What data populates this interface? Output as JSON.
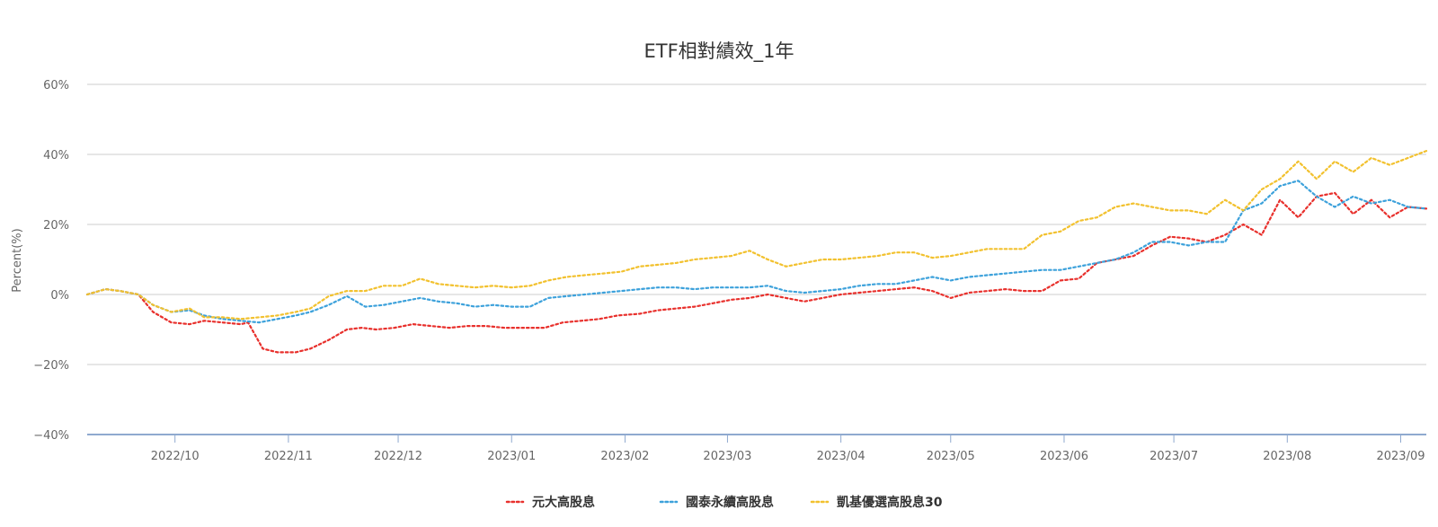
{
  "chart_data": {
    "type": "line",
    "title": "ETF相對績效_1年",
    "ylabel": "Percent(%)",
    "xlabel": "",
    "ylim": [
      -40,
      60
    ],
    "yticks": [
      60,
      40,
      20,
      0,
      -20,
      -40
    ],
    "ytick_labels": [
      "60%",
      "40%",
      "20%",
      "0%",
      "−20%",
      "−40%"
    ],
    "xlim": [
      "2022-09-07",
      "2023-09-08"
    ],
    "xticks": [
      "2022-10-01",
      "2022-11-01",
      "2022-12-01",
      "2023-01-01",
      "2023-02-01",
      "2023-03-01",
      "2023-04-01",
      "2023-05-01",
      "2023-06-01",
      "2023-07-01",
      "2023-08-01",
      "2023-09-01"
    ],
    "xtick_labels": [
      "2022/10",
      "2022/11",
      "2022/12",
      "2023/01",
      "2023/02",
      "2023/03",
      "2023/04",
      "2023/05",
      "2023/06",
      "2023/07",
      "2023/08",
      "2023/09"
    ],
    "grid": true,
    "legend_position": "bottom",
    "series": [
      {
        "name": "元大高股息",
        "color": "#e8302c",
        "x": [
          "2022-09-07",
          "2022-09-12",
          "2022-09-16",
          "2022-09-21",
          "2022-09-25",
          "2022-09-30",
          "2022-10-05",
          "2022-10-09",
          "2022-10-14",
          "2022-10-19",
          "2022-10-21",
          "2022-10-25",
          "2022-10-29",
          "2022-11-03",
          "2022-11-07",
          "2022-11-12",
          "2022-11-17",
          "2022-11-21",
          "2022-11-25",
          "2022-11-30",
          "2022-12-05",
          "2022-12-10",
          "2022-12-15",
          "2022-12-20",
          "2022-12-25",
          "2022-12-30",
          "2023-01-05",
          "2023-01-10",
          "2023-01-15",
          "2023-01-20",
          "2023-01-25",
          "2023-01-30",
          "2023-02-05",
          "2023-02-10",
          "2023-02-15",
          "2023-02-20",
          "2023-02-25",
          "2023-03-02",
          "2023-03-07",
          "2023-03-12",
          "2023-03-17",
          "2023-03-22",
          "2023-03-27",
          "2023-04-01",
          "2023-04-06",
          "2023-04-11",
          "2023-04-16",
          "2023-04-21",
          "2023-04-26",
          "2023-05-01",
          "2023-05-06",
          "2023-05-11",
          "2023-05-16",
          "2023-05-21",
          "2023-05-26",
          "2023-05-31",
          "2023-06-05",
          "2023-06-10",
          "2023-06-15",
          "2023-06-20",
          "2023-06-25",
          "2023-06-30",
          "2023-07-05",
          "2023-07-10",
          "2023-07-15",
          "2023-07-20",
          "2023-07-25",
          "2023-07-30",
          "2023-08-04",
          "2023-08-09",
          "2023-08-14",
          "2023-08-19",
          "2023-08-24",
          "2023-08-29",
          "2023-09-03",
          "2023-09-08"
        ],
        "y": [
          0,
          1.5,
          1,
          0,
          -5,
          -8,
          -8.5,
          -7.5,
          -8,
          -8.5,
          -8,
          -15.5,
          -16.5,
          -16.5,
          -15.5,
          -13,
          -10,
          -9.5,
          -10,
          -9.5,
          -8.5,
          -9,
          -9.5,
          -9,
          -9,
          -9.5,
          -9.5,
          -9.5,
          -8,
          -7.5,
          -7,
          -6,
          -5.5,
          -4.5,
          -4,
          -3.5,
          -2.5,
          -1.5,
          -1,
          0,
          -1,
          -2,
          -1,
          0,
          0.5,
          1,
          1.5,
          2,
          1,
          -1,
          0.5,
          1,
          1.5,
          1,
          1,
          4,
          4.5,
          9,
          10,
          11,
          14,
          16.5,
          16,
          15,
          17,
          20,
          17,
          27,
          22,
          28,
          29,
          23,
          27,
          22,
          25,
          24.5
        ]
      },
      {
        "name": "國泰永續高股息",
        "color": "#3ca1db",
        "x": [
          "2022-09-07",
          "2022-09-12",
          "2022-09-16",
          "2022-09-21",
          "2022-09-25",
          "2022-09-30",
          "2022-10-05",
          "2022-10-09",
          "2022-10-14",
          "2022-10-19",
          "2022-10-24",
          "2022-10-29",
          "2022-11-03",
          "2022-11-07",
          "2022-11-12",
          "2022-11-17",
          "2022-11-22",
          "2022-11-27",
          "2022-12-02",
          "2022-12-07",
          "2022-12-12",
          "2022-12-17",
          "2022-12-22",
          "2022-12-27",
          "2023-01-01",
          "2023-01-06",
          "2023-01-11",
          "2023-01-16",
          "2023-01-21",
          "2023-01-26",
          "2023-01-31",
          "2023-02-05",
          "2023-02-10",
          "2023-02-15",
          "2023-02-20",
          "2023-02-25",
          "2023-03-02",
          "2023-03-07",
          "2023-03-12",
          "2023-03-17",
          "2023-03-22",
          "2023-03-27",
          "2023-04-01",
          "2023-04-06",
          "2023-04-11",
          "2023-04-16",
          "2023-04-21",
          "2023-04-26",
          "2023-05-01",
          "2023-05-06",
          "2023-05-11",
          "2023-05-16",
          "2023-05-21",
          "2023-05-26",
          "2023-05-31",
          "2023-06-05",
          "2023-06-10",
          "2023-06-15",
          "2023-06-20",
          "2023-06-25",
          "2023-06-30",
          "2023-07-05",
          "2023-07-10",
          "2023-07-15",
          "2023-07-20",
          "2023-07-25",
          "2023-07-30",
          "2023-08-04",
          "2023-08-09",
          "2023-08-14",
          "2023-08-19",
          "2023-08-24",
          "2023-08-29",
          "2023-09-03",
          "2023-09-08"
        ],
        "y": [
          0,
          1.5,
          1,
          0,
          -3,
          -5,
          -4.5,
          -6,
          -7,
          -7.5,
          -8,
          -7,
          -6,
          -5,
          -3,
          -0.5,
          -3.5,
          -3,
          -2,
          -1,
          -2,
          -2.5,
          -3.5,
          -3,
          -3.5,
          -3.5,
          -1,
          -0.5,
          0,
          0.5,
          1,
          1.5,
          2,
          2,
          1.5,
          2,
          2,
          2,
          2.5,
          1,
          0.5,
          1,
          1.5,
          2.5,
          3,
          3,
          4,
          5,
          4,
          5,
          5.5,
          6,
          6.5,
          7,
          7,
          8,
          9,
          10,
          12,
          15,
          15,
          14,
          15,
          15,
          24,
          26,
          31,
          32.5,
          28,
          25,
          28,
          26,
          27,
          25,
          24.5
        ]
      },
      {
        "name": "凱基優選高股息30",
        "color": "#f2c12e",
        "x": [
          "2022-09-07",
          "2022-09-12",
          "2022-09-16",
          "2022-09-21",
          "2022-09-25",
          "2022-09-30",
          "2022-10-05",
          "2022-10-09",
          "2022-10-14",
          "2022-10-19",
          "2022-10-24",
          "2022-10-29",
          "2022-11-03",
          "2022-11-07",
          "2022-11-12",
          "2022-11-17",
          "2022-11-22",
          "2022-11-27",
          "2022-12-02",
          "2022-12-07",
          "2022-12-12",
          "2022-12-17",
          "2022-12-22",
          "2022-12-27",
          "2023-01-01",
          "2023-01-06",
          "2023-01-11",
          "2023-01-16",
          "2023-01-21",
          "2023-01-26",
          "2023-01-31",
          "2023-02-05",
          "2023-02-10",
          "2023-02-15",
          "2023-02-20",
          "2023-02-25",
          "2023-03-02",
          "2023-03-07",
          "2023-03-12",
          "2023-03-17",
          "2023-03-22",
          "2023-03-27",
          "2023-04-01",
          "2023-04-06",
          "2023-04-11",
          "2023-04-16",
          "2023-04-21",
          "2023-04-26",
          "2023-05-01",
          "2023-05-06",
          "2023-05-11",
          "2023-05-16",
          "2023-05-21",
          "2023-05-26",
          "2023-05-31",
          "2023-06-05",
          "2023-06-10",
          "2023-06-15",
          "2023-06-20",
          "2023-06-25",
          "2023-06-30",
          "2023-07-05",
          "2023-07-10",
          "2023-07-15",
          "2023-07-20",
          "2023-07-25",
          "2023-07-30",
          "2023-08-04",
          "2023-08-09",
          "2023-08-14",
          "2023-08-19",
          "2023-08-24",
          "2023-08-29",
          "2023-09-03",
          "2023-09-08"
        ],
        "y": [
          0,
          1.5,
          1,
          0,
          -3,
          -5,
          -4,
          -6.5,
          -6.5,
          -7,
          -6.5,
          -6,
          -5,
          -4,
          -0.5,
          1,
          1,
          2.5,
          2.5,
          4.5,
          3,
          2.5,
          2,
          2.5,
          2,
          2.5,
          4,
          5,
          5.5,
          6,
          6.5,
          8,
          8.5,
          9,
          10,
          10.5,
          11,
          12.5,
          10,
          8,
          9,
          10,
          10,
          10.5,
          11,
          12,
          12,
          10.5,
          11,
          12,
          13,
          13,
          13,
          17,
          18,
          21,
          22,
          25,
          26,
          25,
          24,
          24,
          23,
          27,
          24,
          30,
          33,
          38,
          33,
          38,
          35,
          39,
          37,
          39,
          41
        ]
      }
    ]
  }
}
